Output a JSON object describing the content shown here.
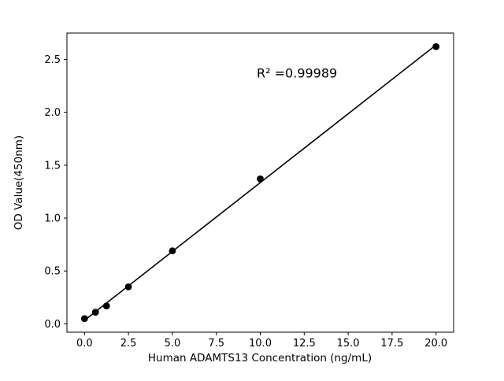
{
  "chart_data": {
    "type": "scatter",
    "title": "",
    "xlabel": "Human ADAMTS13 Concentration (ng/mL)",
    "ylabel": "OD Value(450nm)",
    "x": [
      0,
      0.625,
      1.25,
      2.5,
      5,
      10,
      20
    ],
    "y": [
      0.05,
      0.11,
      0.17,
      0.35,
      0.69,
      1.37,
      2.62
    ],
    "fit_line": {
      "slope": 0.1301,
      "intercept": 0.034,
      "x_start": 0,
      "x_end": 20
    },
    "annotation": {
      "text": "R² =0.99989",
      "x": 9.8,
      "y": 2.33
    },
    "xlim": [
      -1.0,
      21.0
    ],
    "ylim": [
      -0.0785,
      2.7485
    ],
    "xticks": [
      0.0,
      2.5,
      5.0,
      7.5,
      10.0,
      12.5,
      15.0,
      17.5,
      20.0
    ],
    "xtick_labels": [
      "0.0",
      "2.5",
      "5.0",
      "7.5",
      "10.0",
      "12.5",
      "15.0",
      "17.5",
      "20.0"
    ],
    "yticks": [
      0.0,
      0.5,
      1.0,
      1.5,
      2.0,
      2.5
    ],
    "ytick_labels": [
      "0.0",
      "0.5",
      "1.0",
      "1.5",
      "2.0",
      "2.5"
    ],
    "grid": false,
    "legend": null,
    "marker_color": "#000000",
    "line_color": "#000000",
    "background": "#ffffff"
  }
}
